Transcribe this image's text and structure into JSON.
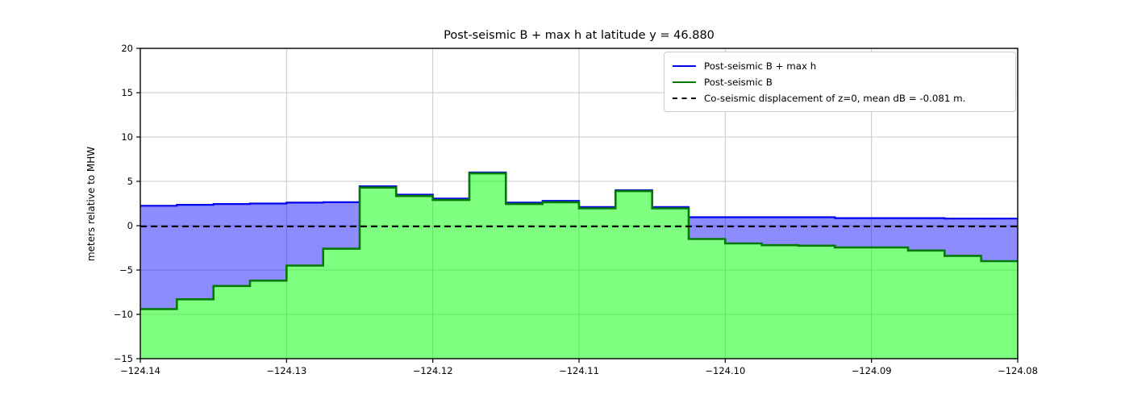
{
  "chart_data": {
    "type": "area",
    "title": "Post-seismic B + max h at latitude y = 46.880",
    "ylabel": "meters relative to MHW",
    "xlabel": "",
    "xlim": [
      -124.14,
      -124.08
    ],
    "ylim": [
      -15,
      20
    ],
    "grid": true,
    "xticks": {
      "values": [
        -124.14,
        -124.13,
        -124.12,
        -124.11,
        -124.1,
        -124.09,
        -124.08
      ],
      "labels": [
        "−124.14",
        "−124.13",
        "−124.12",
        "−124.11",
        "−124.10",
        "−124.09",
        "−124.08"
      ]
    },
    "yticks": {
      "values": [
        20,
        15,
        10,
        5,
        0,
        -5,
        -10,
        -15
      ],
      "labels": [
        "20",
        "15",
        "10",
        "5",
        "0",
        "−5",
        "−10",
        "−15"
      ]
    },
    "cell_edges": [
      -124.14,
      -124.1375,
      -124.135,
      -124.1325,
      -124.13,
      -124.1275,
      -124.125,
      -124.1225,
      -124.12,
      -124.1175,
      -124.115,
      -124.1125,
      -124.11,
      -124.1075,
      -124.105,
      -124.1025,
      -124.1,
      -124.0975,
      -124.095,
      -124.0925,
      -124.09,
      -124.0875,
      -124.085,
      -124.0825,
      -124.08
    ],
    "series": [
      {
        "name": "Post-seismic B + max h",
        "kind": "step-fill",
        "line_color": "#0000ee",
        "fill_color": "#0000ff",
        "fill_opacity": 0.45,
        "fill_to": "other-series",
        "values": [
          2.25,
          2.35,
          2.45,
          2.5,
          2.6,
          2.65,
          4.45,
          3.5,
          3.05,
          6.0,
          2.6,
          2.8,
          2.1,
          4.0,
          2.1,
          0.95,
          0.95,
          0.95,
          0.95,
          0.85,
          0.85,
          0.85,
          0.8,
          0.8
        ]
      },
      {
        "name": "Post-seismic B",
        "kind": "step-fill",
        "line_color": "#067806",
        "fill_color": "#00ff00",
        "fill_opacity": 0.5,
        "fill_to": "bottom",
        "values": [
          -9.4,
          -8.3,
          -6.8,
          -6.2,
          -4.5,
          -2.6,
          4.3,
          3.35,
          2.9,
          5.9,
          2.45,
          2.65,
          1.95,
          3.9,
          1.95,
          -1.5,
          -2.0,
          -2.2,
          -2.25,
          -2.45,
          -2.45,
          -2.8,
          -3.4,
          -4.0
        ]
      },
      {
        "name": "Co-seismic displacement of z=0, mean dB = -0.081 m.",
        "kind": "hline",
        "y": -0.081,
        "line_color": "#000000",
        "dash": [
          8,
          5
        ]
      }
    ],
    "legend": {
      "position": "upper right",
      "entries": [
        {
          "label": "Post-seismic B + max h",
          "sample": "solid-blue-line"
        },
        {
          "label": "Post-seismic B",
          "sample": "solid-green-line"
        },
        {
          "label": "Co-seismic displacement of z=0, mean dB = -0.081 m.",
          "sample": "dashed-black-line"
        }
      ]
    },
    "grid_color": "#c8c8c8",
    "spine_color": "#000000"
  }
}
